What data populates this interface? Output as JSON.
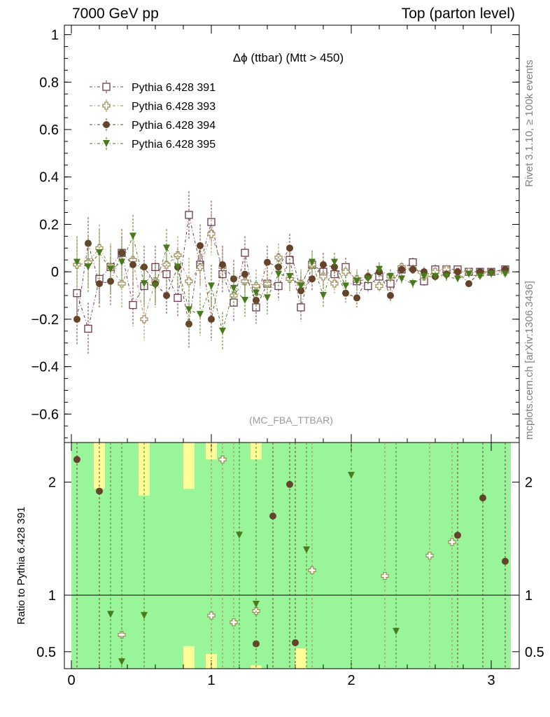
{
  "header": {
    "left": "7000 GeV pp",
    "right": "Top (parton level)"
  },
  "side_labels": {
    "rivet": "Rivet 3.1.10, ≥ 100k events",
    "mcplots": "mcplots.cern.ch [arXiv:1306.3436]"
  },
  "chart_data": {
    "type": "scatter",
    "title": "Δϕ (ttbar) (Mtt > 450)",
    "watermark": "(MC_FBA_TTBAR)",
    "grid": false,
    "legend_position": "top-left",
    "colors": {
      "s391": "#6b3a4e",
      "s393": "#9c8a55",
      "s394": "#65432b",
      "s395": "#4a7a1e",
      "band_green": "#99f599",
      "band_yellow": "#ffff99"
    },
    "main": {
      "xlim": [
        -0.05,
        3.2
      ],
      "ylim": [
        -0.72,
        1.04
      ],
      "yticks": [
        -0.6,
        -0.4,
        -0.2,
        0,
        0.2,
        0.4,
        0.6,
        0.8,
        1
      ],
      "ytick_labels": [
        "−0.6",
        "−0.4",
        "−0.2",
        "0",
        "0.2",
        "0.4",
        "0.6",
        "0.8",
        "1"
      ],
      "x": [
        0.04,
        0.12,
        0.2,
        0.28,
        0.36,
        0.44,
        0.52,
        0.6,
        0.68,
        0.76,
        0.84,
        0.92,
        1.0,
        1.08,
        1.16,
        1.24,
        1.32,
        1.4,
        1.48,
        1.56,
        1.64,
        1.72,
        1.8,
        1.88,
        1.96,
        2.04,
        2.12,
        2.2,
        2.28,
        2.36,
        2.44,
        2.52,
        2.6,
        2.68,
        2.76,
        2.84,
        2.92,
        3.0,
        3.1
      ],
      "series": [
        {
          "name": "Pythia 6.428 391",
          "marker": "open-square",
          "color": "#6b3a4e",
          "values": [
            -0.09,
            -0.24,
            -0.03,
            0.02,
            0.08,
            -0.14,
            -0.06,
            0.02,
            -0.01,
            -0.11,
            0.24,
            0.03,
            0.21,
            -0.01,
            -0.13,
            0.08,
            -0.15,
            -0.05,
            -0.06,
            0.05,
            -0.15,
            0.03,
            0.0,
            -0.01,
            0.02,
            -0.04,
            -0.06,
            -0.02,
            -0.05,
            0.01,
            0.04,
            -0.04,
            0.01,
            0.01,
            0.01,
            0.0,
            0.0,
            0.0,
            0.01
          ],
          "errors": [
            0.11,
            0.11,
            0.1,
            0.1,
            0.1,
            0.09,
            0.09,
            0.09,
            0.08,
            0.08,
            0.1,
            0.09,
            0.09,
            0.08,
            0.08,
            0.07,
            0.07,
            0.07,
            0.06,
            0.06,
            0.06,
            0.05,
            0.05,
            0.04,
            0.04,
            0.04,
            0.03,
            0.03,
            0.03,
            0.02,
            0.02,
            0.02,
            0.02,
            0.02,
            0.01,
            0.01,
            0.01,
            0.01,
            0.01
          ]
        },
        {
          "name": "Pythia 6.428 393",
          "marker": "open-cross",
          "color": "#9c8a55",
          "values": [
            0.03,
            0.04,
            0.1,
            0.02,
            -0.05,
            0.05,
            -0.2,
            -0.04,
            0.03,
            0.07,
            -0.04,
            0.02,
            0.16,
            0.02,
            -0.1,
            -0.04,
            -0.06,
            -0.05,
            0.06,
            -0.03,
            -0.05,
            0.03,
            -0.02,
            -0.05,
            0.0,
            -0.03,
            -0.02,
            -0.06,
            -0.02,
            0.02,
            0.01,
            -0.02,
            0.0,
            0.01,
            0.0,
            0.0,
            -0.01,
            0.0,
            0.0
          ],
          "errors": [
            0.11,
            0.11,
            0.1,
            0.1,
            0.1,
            0.09,
            0.09,
            0.09,
            0.08,
            0.08,
            0.1,
            0.09,
            0.09,
            0.08,
            0.08,
            0.07,
            0.07,
            0.07,
            0.06,
            0.06,
            0.06,
            0.05,
            0.05,
            0.04,
            0.04,
            0.04,
            0.03,
            0.03,
            0.03,
            0.02,
            0.02,
            0.02,
            0.02,
            0.02,
            0.01,
            0.01,
            0.01,
            0.01,
            0.01
          ]
        },
        {
          "name": "Pythia 6.428 394",
          "marker": "filled-circle",
          "color": "#65432b",
          "values": [
            -0.2,
            0.12,
            -0.05,
            -0.04,
            0.08,
            0.03,
            0.02,
            -0.05,
            -0.1,
            0.02,
            -0.22,
            0.11,
            -0.2,
            0.03,
            -0.03,
            -0.01,
            -0.12,
            0.04,
            0.02,
            0.1,
            -0.08,
            -0.03,
            0.03,
            0.02,
            -0.09,
            -0.11,
            -0.02,
            0.0,
            -0.1,
            0.01,
            0.01,
            0.0,
            -0.02,
            -0.01,
            0.0,
            -0.05,
            0.0,
            0.0,
            0.01
          ],
          "errors": [
            0.11,
            0.11,
            0.1,
            0.1,
            0.1,
            0.09,
            0.09,
            0.09,
            0.08,
            0.08,
            0.1,
            0.09,
            0.09,
            0.08,
            0.08,
            0.07,
            0.07,
            0.07,
            0.06,
            0.06,
            0.06,
            0.05,
            0.05,
            0.04,
            0.04,
            0.04,
            0.03,
            0.03,
            0.03,
            0.02,
            0.02,
            0.02,
            0.02,
            0.02,
            0.01,
            0.01,
            0.01,
            0.01,
            0.01
          ]
        },
        {
          "name": "Pythia 6.428 395",
          "marker": "filled-triangle-down",
          "color": "#4a7a1e",
          "values": [
            0.04,
            0.02,
            0.08,
            0.01,
            0.04,
            0.15,
            -0.05,
            -0.06,
            0.1,
            0.02,
            -0.16,
            -0.18,
            -0.06,
            -0.25,
            -0.07,
            -0.12,
            -0.09,
            -0.11,
            -0.01,
            -0.02,
            -0.06,
            0.04,
            -0.1,
            0.04,
            -0.06,
            -0.04,
            -0.03,
            0.01,
            -0.02,
            -0.03,
            -0.05,
            -0.02,
            -0.02,
            -0.02,
            -0.03,
            -0.01,
            -0.02,
            -0.01,
            -0.01
          ],
          "errors": [
            0.11,
            0.11,
            0.1,
            0.1,
            0.1,
            0.09,
            0.09,
            0.09,
            0.08,
            0.08,
            0.1,
            0.09,
            0.09,
            0.08,
            0.08,
            0.07,
            0.07,
            0.07,
            0.06,
            0.06,
            0.06,
            0.05,
            0.05,
            0.04,
            0.04,
            0.04,
            0.03,
            0.03,
            0.03,
            0.02,
            0.02,
            0.02,
            0.02,
            0.02,
            0.01,
            0.01,
            0.01,
            0.01,
            0.01
          ]
        }
      ]
    },
    "ratio": {
      "ylabel": "Ratio to Pythia 6.428 391",
      "ylim": [
        0.35,
        2.35
      ],
      "yticks": [
        0.5,
        1,
        2
      ],
      "ytick_labels": [
        "0.5",
        "1",
        "2"
      ],
      "xticks": [
        0,
        1,
        2,
        3
      ],
      "xtick_labels": [
        "0",
        "1",
        "2",
        "3"
      ],
      "reference_line": 1,
      "bands": {
        "bin_edges": [
          0.0,
          0.08,
          0.16,
          0.24,
          0.32,
          0.4,
          0.48,
          0.56,
          0.64,
          0.72,
          0.8,
          0.88,
          0.96,
          1.04,
          1.12,
          1.2,
          1.28,
          1.36,
          1.44,
          1.52,
          1.6,
          1.68,
          1.76,
          1.84,
          1.92,
          2.0,
          2.08,
          2.16,
          2.24,
          2.32,
          2.4,
          2.48,
          2.56,
          2.64,
          2.72,
          2.8,
          2.88,
          2.96,
          3.04,
          3.14
        ],
        "green_low": [
          0.35,
          0.35,
          0.35,
          0.35,
          0.35,
          0.35,
          0.35,
          0.35,
          0.35,
          0.35,
          0.55,
          0.35,
          0.48,
          0.35,
          0.35,
          0.35,
          0.38,
          0.35,
          0.35,
          0.35,
          0.53,
          0.35,
          0.35,
          0.35,
          0.35,
          0.35,
          0.35,
          0.35,
          0.35,
          0.35,
          0.35,
          0.35,
          0.35,
          0.35,
          0.35,
          0.35,
          0.35,
          0.35,
          0.35
        ],
        "green_high": [
          2.35,
          2.35,
          1.94,
          2.35,
          2.35,
          2.35,
          1.88,
          2.35,
          2.35,
          2.35,
          1.94,
          2.35,
          2.2,
          2.35,
          2.35,
          2.35,
          2.2,
          2.35,
          2.35,
          2.35,
          2.35,
          2.35,
          2.35,
          2.35,
          2.35,
          2.35,
          2.35,
          2.35,
          2.35,
          2.35,
          2.35,
          2.35,
          2.35,
          2.35,
          2.35,
          2.35,
          2.35,
          2.35,
          2.35
        ],
        "yellow_low": [
          0.35,
          0.35,
          0.35,
          0.35,
          0.35,
          0.35,
          0.35,
          0.35,
          0.35,
          0.35,
          0.35,
          0.35,
          0.35,
          0.35,
          0.35,
          0.35,
          0.35,
          0.35,
          0.35,
          0.35,
          0.35,
          0.35,
          0.35,
          0.35,
          0.35,
          0.35,
          0.35,
          0.35,
          0.35,
          0.35,
          0.35,
          0.35,
          0.35,
          0.35,
          0.35,
          0.35,
          0.35,
          0.35,
          0.35
        ],
        "yellow_high": [
          2.35,
          2.35,
          2.35,
          2.35,
          2.35,
          2.35,
          2.35,
          2.35,
          2.35,
          2.35,
          2.35,
          2.35,
          2.35,
          2.35,
          2.35,
          2.35,
          2.35,
          2.35,
          2.35,
          2.35,
          2.35,
          2.35,
          2.35,
          2.35,
          2.35,
          2.35,
          2.35,
          2.35,
          2.35,
          2.35,
          2.35,
          2.35,
          2.35,
          2.35,
          2.35,
          2.35,
          2.35,
          2.35,
          2.35
        ]
      },
      "series": [
        {
          "name": "Pythia 6.428 393",
          "x": [
            0.36,
            1.0,
            1.08,
            1.16,
            1.32,
            1.72,
            2.24,
            2.56,
            2.72
          ],
          "values": [
            0.65,
            0.82,
            2.2,
            0.76,
            0.86,
            1.22,
            1.17,
            1.35,
            1.47
          ]
        },
        {
          "name": "Pythia 6.428 394",
          "x": [
            0.04,
            0.2,
            1.32,
            1.44,
            1.56,
            1.6,
            2.76,
            2.94,
            3.1
          ],
          "values": [
            2.2,
            1.92,
            0.57,
            1.7,
            1.98,
            0.58,
            1.53,
            1.86,
            1.3
          ]
        },
        {
          "name": "Pythia 6.428 395",
          "x": [
            0.28,
            0.36,
            0.52,
            1.2,
            1.32,
            1.68,
            2.0,
            2.32
          ],
          "values": [
            0.83,
            0.41,
            0.82,
            1.53,
            0.92,
            1.4,
            2.06,
            0.68
          ]
        }
      ]
    }
  }
}
